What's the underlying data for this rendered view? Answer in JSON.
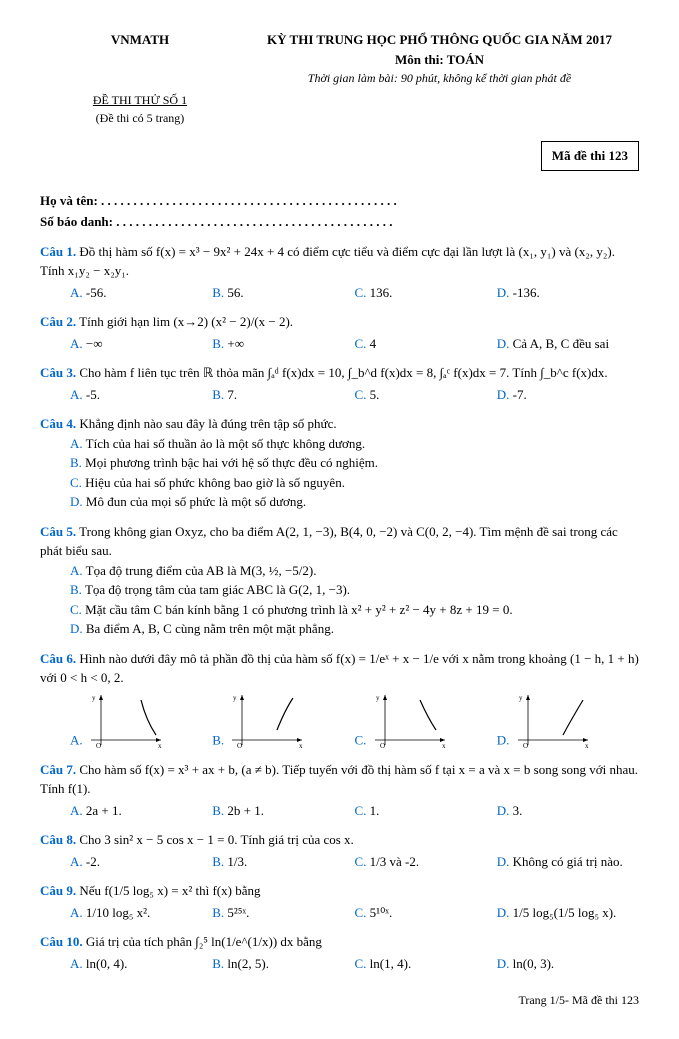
{
  "header": {
    "org": "VNMATH",
    "exam_no": "ĐỀ THI THỬ SỐ 1",
    "pages_note": "(Đề thi có 5 trang)",
    "title": "KỲ THI TRUNG HỌC PHỔ THÔNG QUỐC GIA NĂM 2017",
    "subject": "Môn thi: TOÁN",
    "time": "Thời gian làm bài: 90 phút, không kể thời gian phát đề",
    "code": "Mã đề thi 123"
  },
  "info": {
    "name_label": "Họ và tên: . . . . . . . . . . . . . . . . . . . . . . . . . . . . . . . . . . . . . . . . . . . . . .",
    "id_label": "Số báo danh: . . . . . . . . . . . . . . . . . . . . . . . . . . . . . . . . . . . . . . . . . . ."
  },
  "questions": [
    {
      "label": "Câu 1.",
      "text": "Đồ thị hàm số f(x) = x³ − 9x² + 24x + 4 có điểm cực tiểu và điểm cực đại lần lượt là (x₁, y₁) và (x₂, y₂). Tính x₁y₂ − x₂y₁.",
      "choices": [
        "-56.",
        "56.",
        "136.",
        "-136."
      ]
    },
    {
      "label": "Câu 2.",
      "text": "Tính giới hạn lim (x→2) (x² − 2)/(x − 2).",
      "choices": [
        "−∞",
        "+∞",
        "4",
        "Cả A, B, C đều sai"
      ]
    },
    {
      "label": "Câu 3.",
      "text": "Cho hàm f liên tục trên ℝ thỏa mãn ∫ₐᵈ f(x)dx = 10, ∫_b^d f(x)dx = 8, ∫ₐᶜ f(x)dx = 7. Tính ∫_b^c f(x)dx.",
      "choices": [
        "-5.",
        "7.",
        "5.",
        "-7."
      ]
    },
    {
      "label": "Câu 4.",
      "text": "Khẳng định nào sau đây là đúng trên tập số phức.",
      "subs": [
        "Tích của hai số thuần ảo là một số thực không dương.",
        "Mọi phương trình bậc hai với hệ số thực đều có nghiệm.",
        "Hiệu của hai số phức không bao giờ là số nguyên.",
        "Mô đun của mọi số phức là một số dương."
      ]
    },
    {
      "label": "Câu 5.",
      "text": "Trong không gian Oxyz, cho ba điểm A(2, 1, −3), B(4, 0, −2) và C(0, 2, −4). Tìm mệnh đề sai trong các phát biểu sau.",
      "subs": [
        "Tọa độ trung điểm của AB là M(3, ½, −5/2).",
        "Tọa độ trọng tâm của tam giác ABC là G(2, 1, −3).",
        "Mặt cầu tâm C bán kính bằng 1 có phương trình là x² + y² + z² − 4y + 8z + 19 = 0.",
        "Ba điểm A, B, C cùng nằm trên một mặt phẳng."
      ]
    },
    {
      "label": "Câu 6.",
      "text": "Hình nào dưới đây mô tả phần đồ thị của hàm số f(x) = 1/eˣ + x − 1/e với x nằm trong khoảng (1 − h, 1 + h) với 0 < h < 0, 2.",
      "graphs": true,
      "choices": [
        "",
        "",
        "",
        ""
      ]
    },
    {
      "label": "Câu 7.",
      "text": "Cho hàm số f(x) = x³ + ax + b, (a ≠ b). Tiếp tuyến với đồ thị hàm số f tại x = a và x = b song song với nhau. Tính f(1).",
      "choices": [
        "2a + 1.",
        "2b + 1.",
        "1.",
        "3."
      ]
    },
    {
      "label": "Câu 8.",
      "text": "Cho 3 sin² x − 5 cos x − 1 = 0. Tính giá trị của cos x.",
      "choices": [
        "-2.",
        "1/3.",
        "1/3 và -2.",
        "Không có giá trị nào."
      ]
    },
    {
      "label": "Câu 9.",
      "text": "Nếu f(1/5 log₅ x) = x² thì f(x) bằng",
      "choices": [
        "1/10 log₅ x².",
        "5²⁵ˣ.",
        "5¹⁰ˣ.",
        "1/5 log₅(1/5 log₅ x)."
      ]
    },
    {
      "label": "Câu 10.",
      "text": "Giá trị của tích phân ∫₂⁵ ln(1/e^(1/x)) dx bằng",
      "choices": [
        "ln(0, 4).",
        "ln(2, 5).",
        "ln(1, 4).",
        "ln(0, 3)."
      ]
    }
  ],
  "choice_labels": [
    "A.",
    "B.",
    "C.",
    "D."
  ],
  "footer": "Trang 1/5- Mã đề thi 123"
}
